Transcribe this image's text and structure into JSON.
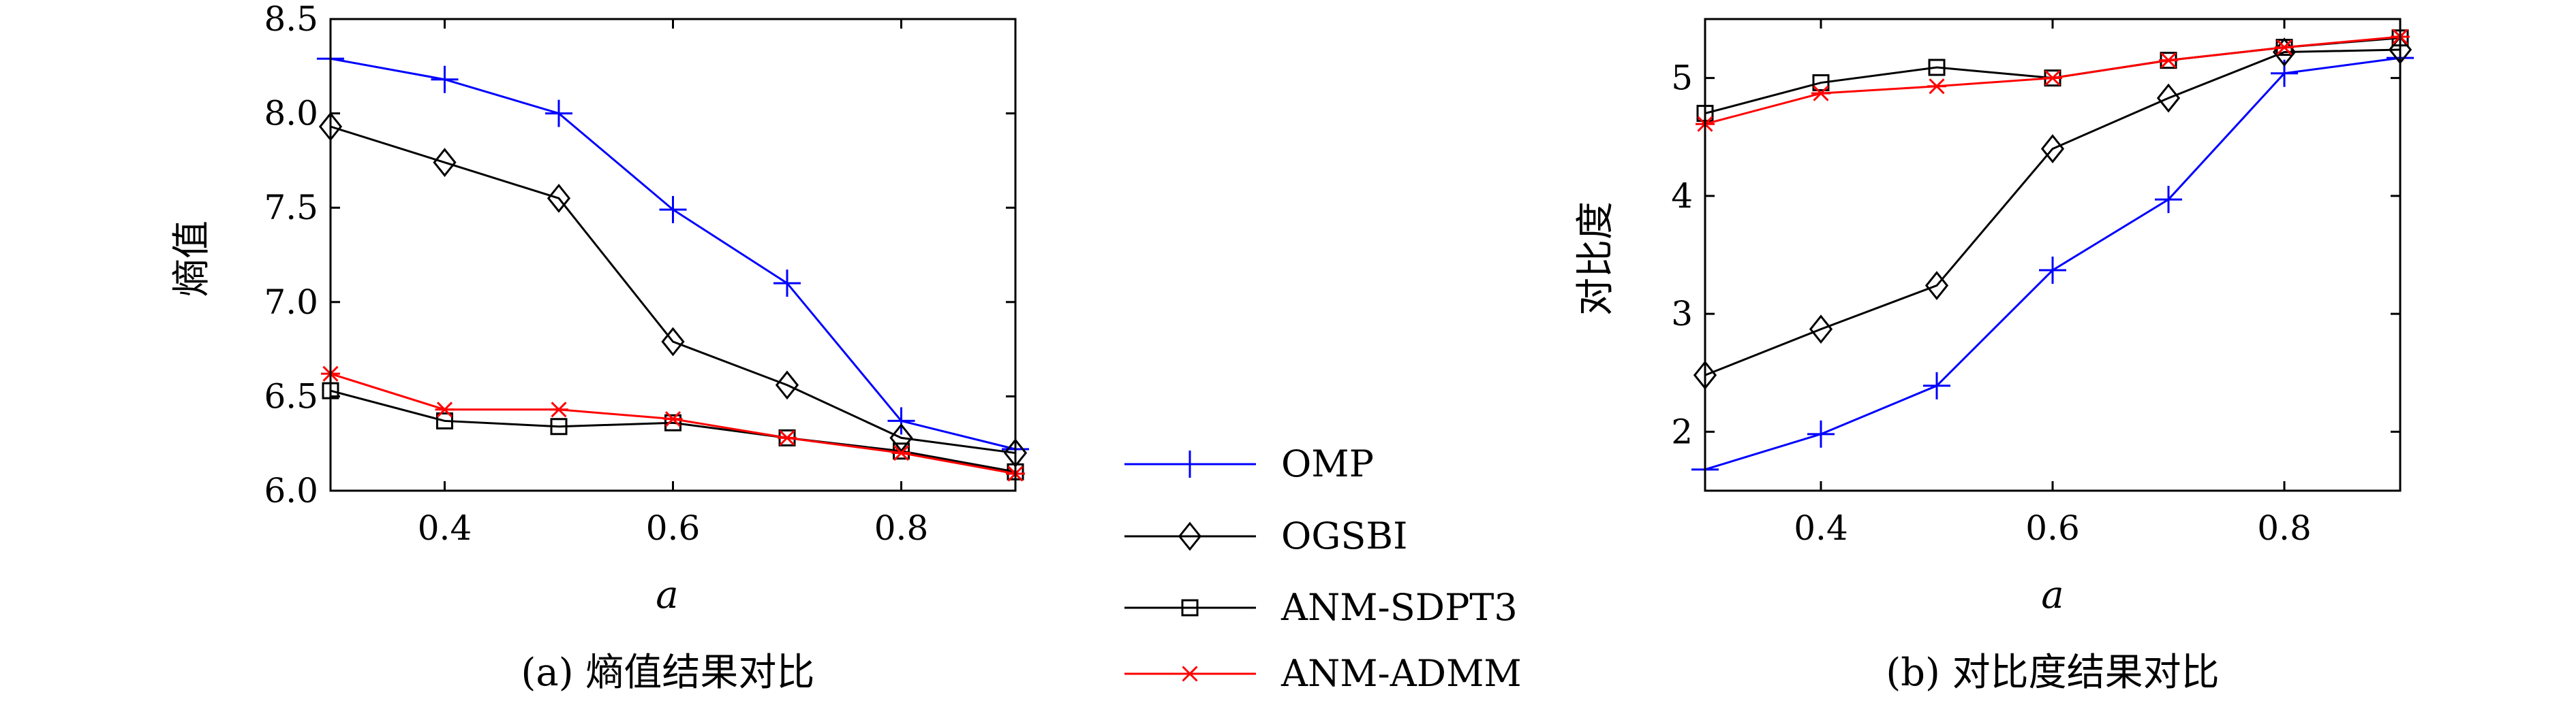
{
  "chart_data": [
    {
      "type": "line",
      "panel": "a",
      "caption": "(a) 熵值结果对比",
      "xlabel": "a",
      "ylabel": "熵值",
      "xlim": [
        0.3,
        0.9
      ],
      "ylim": [
        6.0,
        8.5
      ],
      "xticks": [
        "0.4",
        "0.6",
        "0.8"
      ],
      "xtick_values": [
        0.4,
        0.6,
        0.8
      ],
      "yticks": [
        "6.0",
        "6.5",
        "7.0",
        "7.5",
        "8.0",
        "8.5"
      ],
      "ytick_values": [
        6.0,
        6.5,
        7.0,
        7.5,
        8.0,
        8.5
      ],
      "x": [
        0.3,
        0.4,
        0.5,
        0.6,
        0.7,
        0.8,
        0.9
      ],
      "series": [
        {
          "name": "OMP",
          "values": [
            8.29,
            8.18,
            8.0,
            7.49,
            7.1,
            6.37,
            6.22
          ]
        },
        {
          "name": "OGSBI",
          "values": [
            7.93,
            7.74,
            7.55,
            6.79,
            6.56,
            6.28,
            6.2
          ]
        },
        {
          "name": "ANM-SDPT3",
          "values": [
            6.53,
            6.37,
            6.34,
            6.36,
            6.28,
            6.21,
            6.1
          ]
        },
        {
          "name": "ANM-ADMM",
          "values": [
            6.62,
            6.43,
            6.43,
            6.38,
            6.28,
            6.2,
            6.09
          ]
        }
      ]
    },
    {
      "type": "line",
      "panel": "b",
      "caption": "(b) 对比度结果对比",
      "xlabel": "a",
      "ylabel": "对比度",
      "xlim": [
        0.3,
        0.9
      ],
      "ylim": [
        1.5,
        5.5
      ],
      "xticks": [
        "0.4",
        "0.6",
        "0.8"
      ],
      "xtick_values": [
        0.4,
        0.6,
        0.8
      ],
      "yticks": [
        "2",
        "3",
        "4",
        "5"
      ],
      "ytick_values": [
        2,
        3,
        4,
        5
      ],
      "x": [
        0.3,
        0.4,
        0.5,
        0.6,
        0.7,
        0.8,
        0.9
      ],
      "series": [
        {
          "name": "OMP",
          "values": [
            1.68,
            1.98,
            2.39,
            3.37,
            3.97,
            5.04,
            5.17
          ]
        },
        {
          "name": "OGSBI",
          "values": [
            2.48,
            2.87,
            3.24,
            4.4,
            4.83,
            5.22,
            5.24
          ]
        },
        {
          "name": "ANM-SDPT3",
          "values": [
            4.7,
            4.96,
            5.09,
            5.0,
            5.15,
            5.26,
            5.34
          ]
        },
        {
          "name": "ANM-ADMM",
          "values": [
            4.61,
            4.87,
            4.93,
            5.0,
            5.15,
            5.26,
            5.35
          ]
        }
      ]
    }
  ],
  "legend": {
    "placement": "center-between-panels",
    "items": [
      {
        "name": "OMP",
        "color": "#0000ff",
        "marker": "plus"
      },
      {
        "name": "OGSBI",
        "color": "#000000",
        "marker": "diamond"
      },
      {
        "name": "ANM-SDPT3",
        "color": "#000000",
        "marker": "square"
      },
      {
        "name": "ANM-ADMM",
        "color": "#ff0000",
        "marker": "asterisk"
      }
    ]
  }
}
